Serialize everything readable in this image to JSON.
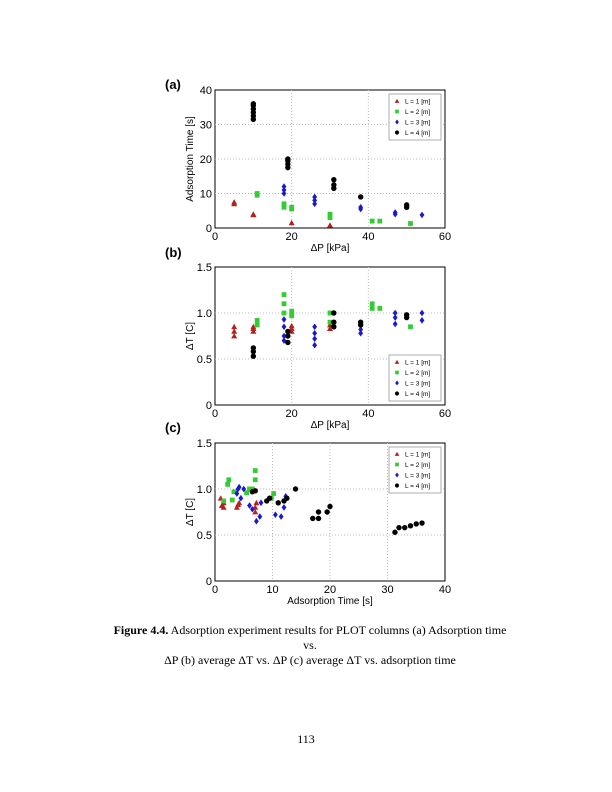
{
  "chart_data": [
    {
      "panel": "(a)",
      "type": "scatter",
      "xlabel": "ΔP [kPa]",
      "ylabel": "Adsorption Time [s]",
      "xlim": [
        0,
        60
      ],
      "ylim": [
        0,
        40
      ],
      "xticks": [
        0,
        20,
        40,
        60
      ],
      "yticks": [
        0,
        10,
        20,
        30,
        40
      ],
      "grid": true,
      "legend": "top-right",
      "series": [
        {
          "name": "L = 1 [m]",
          "color": "#b22222",
          "marker": "triangle",
          "points": [
            [
              5,
              7
            ],
            [
              5,
              7.5
            ],
            [
              10,
              4
            ],
            [
              10,
              3.8
            ],
            [
              20,
              1.5
            ],
            [
              30,
              0.8
            ]
          ]
        },
        {
          "name": "L = 2 [m]",
          "color": "#33cc33",
          "marker": "square",
          "points": [
            [
              11,
              9.5
            ],
            [
              11,
              10
            ],
            [
              18,
              6
            ],
            [
              18,
              7
            ],
            [
              20,
              5.5
            ],
            [
              20,
              6
            ],
            [
              30,
              3
            ],
            [
              30,
              4
            ],
            [
              41,
              2
            ],
            [
              43,
              2
            ],
            [
              51,
              1.3
            ]
          ]
        },
        {
          "name": "L = 3 [m]",
          "color": "#1a1acc",
          "marker": "diamond",
          "points": [
            [
              18,
              10
            ],
            [
              18,
              11
            ],
            [
              18,
              12
            ],
            [
              26,
              7
            ],
            [
              26,
              8
            ],
            [
              26,
              9
            ],
            [
              38,
              5.5
            ],
            [
              38,
              6
            ],
            [
              47,
              4
            ],
            [
              47,
              4.5
            ],
            [
              54,
              3.8
            ]
          ]
        },
        {
          "name": "L = 4 [m]",
          "color": "#000000",
          "marker": "circle",
          "points": [
            [
              10,
              31.5
            ],
            [
              10,
              32.5
            ],
            [
              10,
              33.5
            ],
            [
              10,
              34.5
            ],
            [
              10,
              35.5
            ],
            [
              10,
              36
            ],
            [
              19,
              17.5
            ],
            [
              19,
              18.5
            ],
            [
              19,
              19.5
            ],
            [
              19,
              20
            ],
            [
              31,
              11.5
            ],
            [
              31,
              12.5
            ],
            [
              31,
              14
            ],
            [
              38,
              9
            ],
            [
              50,
              6
            ],
            [
              50,
              6.7
            ]
          ]
        }
      ]
    },
    {
      "panel": "(b)",
      "type": "scatter",
      "xlabel": "ΔP [kPa]",
      "ylabel": "ΔT [C]",
      "xlim": [
        0,
        60
      ],
      "ylim": [
        0,
        1.5
      ],
      "xticks": [
        0,
        20,
        40,
        60
      ],
      "yticks": [
        0,
        0.5,
        1.0,
        1.5
      ],
      "grid": true,
      "legend": "bottom-right",
      "series": [
        {
          "name": "L = 1 [m]",
          "color": "#b22222",
          "marker": "triangle",
          "points": [
            [
              5,
              0.75
            ],
            [
              5,
              0.8
            ],
            [
              5,
              0.85
            ],
            [
              10,
              0.8
            ],
            [
              10,
              0.83
            ],
            [
              10,
              0.85
            ],
            [
              20,
              0.8
            ],
            [
              20,
              0.83
            ],
            [
              20,
              0.86
            ],
            [
              30,
              0.83
            ],
            [
              30,
              0.87
            ]
          ]
        },
        {
          "name": "L = 2 [m]",
          "color": "#33cc33",
          "marker": "square",
          "points": [
            [
              11,
              0.87
            ],
            [
              11,
              0.92
            ],
            [
              18,
              1.0
            ],
            [
              18,
              1.1
            ],
            [
              18,
              1.2
            ],
            [
              20,
              0.97
            ],
            [
              20,
              1.02
            ],
            [
              30,
              0.9
            ],
            [
              30,
              1.0
            ],
            [
              41,
              1.05
            ],
            [
              41,
              1.1
            ],
            [
              43,
              1.05
            ],
            [
              51,
              0.85
            ]
          ]
        },
        {
          "name": "L = 3 [m]",
          "color": "#1a1acc",
          "marker": "diamond",
          "points": [
            [
              18,
              0.7
            ],
            [
              18,
              0.75
            ],
            [
              18,
              0.85
            ],
            [
              18,
              0.93
            ],
            [
              26,
              0.65
            ],
            [
              26,
              0.72
            ],
            [
              26,
              0.78
            ],
            [
              26,
              0.85
            ],
            [
              38,
              0.78
            ],
            [
              38,
              0.82
            ],
            [
              38,
              0.87
            ],
            [
              47,
              0.88
            ],
            [
              47,
              0.95
            ],
            [
              47,
              1.0
            ],
            [
              54,
              0.92
            ],
            [
              54,
              1.0
            ]
          ]
        },
        {
          "name": "L = 4 [m]",
          "color": "#000000",
          "marker": "circle",
          "points": [
            [
              10,
              0.53
            ],
            [
              10,
              0.58
            ],
            [
              10,
              0.62
            ],
            [
              19,
              0.68
            ],
            [
              19,
              0.75
            ],
            [
              19,
              0.8
            ],
            [
              31,
              0.85
            ],
            [
              31,
              0.9
            ],
            [
              31,
              1.0
            ],
            [
              38,
              0.87
            ],
            [
              38,
              0.9
            ],
            [
              50,
              0.95
            ],
            [
              50,
              0.98
            ]
          ]
        }
      ]
    },
    {
      "panel": "(c)",
      "type": "scatter",
      "xlabel": "Adsorption Time [s]",
      "ylabel": "ΔT [C]",
      "xlim": [
        0,
        40
      ],
      "ylim": [
        0,
        1.5
      ],
      "xticks": [
        0,
        10,
        20,
        30,
        40
      ],
      "yticks": [
        0,
        0.5,
        1.0,
        1.5
      ],
      "grid": true,
      "legend": "top-right",
      "series": [
        {
          "name": "L = 1 [m]",
          "color": "#b22222",
          "marker": "triangle",
          "points": [
            [
              1,
              0.9
            ],
            [
              1.2,
              0.82
            ],
            [
              1.5,
              0.85
            ],
            [
              1.5,
              0.8
            ],
            [
              3.8,
              0.8
            ],
            [
              4,
              0.83
            ],
            [
              4.2,
              0.85
            ],
            [
              7,
              0.75
            ],
            [
              7,
              0.8
            ],
            [
              7.2,
              0.85
            ]
          ]
        },
        {
          "name": "L = 2 [m]",
          "color": "#33cc33",
          "marker": "square",
          "points": [
            [
              1.5,
              0.87
            ],
            [
              2.2,
              1.05
            ],
            [
              2.4,
              1.1
            ],
            [
              3,
              0.88
            ],
            [
              3.3,
              0.97
            ],
            [
              5.5,
              0.96
            ],
            [
              6,
              1.0
            ],
            [
              6.5,
              1.0
            ],
            [
              7,
              1.1
            ],
            [
              7,
              1.2
            ],
            [
              9.8,
              0.9
            ],
            [
              10.2,
              0.95
            ]
          ]
        },
        {
          "name": "L = 3 [m]",
          "color": "#1a1acc",
          "marker": "diamond",
          "points": [
            [
              3.8,
              0.95
            ],
            [
              4,
              1.0
            ],
            [
              4.2,
              1.02
            ],
            [
              4.5,
              0.9
            ],
            [
              5,
              1.0
            ],
            [
              6,
              0.82
            ],
            [
              6.5,
              0.78
            ],
            [
              7.2,
              0.65
            ],
            [
              7.8,
              0.7
            ],
            [
              8,
              0.85
            ],
            [
              10.5,
              0.72
            ],
            [
              11.5,
              0.7
            ],
            [
              12,
              0.8
            ],
            [
              12.3,
              0.92
            ]
          ]
        },
        {
          "name": "L = 4 [m]",
          "color": "#000000",
          "marker": "circle",
          "points": [
            [
              6.5,
              0.97
            ],
            [
              7,
              0.98
            ],
            [
              9,
              0.87
            ],
            [
              9.5,
              0.9
            ],
            [
              11,
              0.85
            ],
            [
              12,
              0.87
            ],
            [
              12.5,
              0.9
            ],
            [
              14,
              1.0
            ],
            [
              17,
              0.68
            ],
            [
              18,
              0.68
            ],
            [
              18,
              0.75
            ],
            [
              19.5,
              0.75
            ],
            [
              20,
              0.81
            ],
            [
              31.3,
              0.53
            ],
            [
              32,
              0.58
            ],
            [
              33,
              0.58
            ],
            [
              34,
              0.6
            ],
            [
              35,
              0.62
            ],
            [
              36,
              0.63
            ]
          ]
        }
      ]
    }
  ],
  "caption": {
    "label": "Figure 4.4.",
    "text1": " Adsorption experiment results for PLOT columns (a) Adsorption time vs.",
    "text2": "ΔP (b) average ΔT vs. ΔP (c) average ΔT vs. adsorption time"
  },
  "page_number": "113"
}
